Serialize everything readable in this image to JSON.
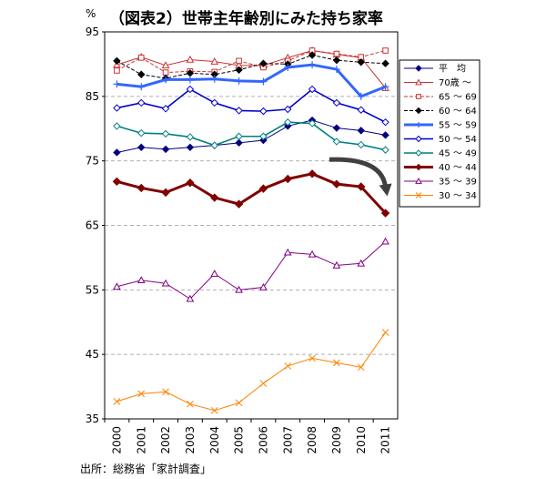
{
  "title": "（図表2）世帯主年齢別にみた持ち家率",
  "y_unit": "%",
  "source": "出所：総務省「家計調査」",
  "chart_data": {
    "type": "line",
    "title": "（図表2）世帯主年齢別にみた持ち家率",
    "xlabel": "",
    "ylabel": "%",
    "categories": [
      "2000",
      "2001",
      "2002",
      "2003",
      "2004",
      "2005",
      "2006",
      "2007",
      "2008",
      "2009",
      "2010",
      "2011"
    ],
    "ylim": [
      35,
      95
    ],
    "yticks": [
      35,
      45,
      55,
      65,
      75,
      85,
      95
    ],
    "grid": "horizontal dashed",
    "legend_position": "right",
    "annotation": "downward arrow between 2009 and 2011",
    "series": [
      {
        "name": "平　均",
        "color": "#000080",
        "style": "solid-thin",
        "marker": "diamond-filled",
        "values": [
          76.3,
          77.1,
          76.8,
          77.1,
          77.4,
          77.8,
          78.2,
          80.4,
          81.3,
          80.1,
          79.7,
          79.0
        ]
      },
      {
        "name": "70歳 ～",
        "color": "#cc3333",
        "style": "solid-thin",
        "marker": "triangle-open",
        "values": [
          89.9,
          91.1,
          89.8,
          90.7,
          90.4,
          89.8,
          89.8,
          91.0,
          92.1,
          91.5,
          91.0,
          86.3
        ]
      },
      {
        "name": "65 ～ 69",
        "color": "#cc3333",
        "style": "dashed",
        "marker": "square-open",
        "values": [
          89.0,
          91.0,
          88.7,
          88.9,
          88.8,
          90.5,
          89.5,
          90.5,
          92.1,
          91.6,
          91.1,
          92.1
        ]
      },
      {
        "name": "60 ～ 64",
        "color": "#000000",
        "style": "dashed",
        "marker": "diamond-filled",
        "values": [
          90.5,
          88.4,
          87.8,
          88.6,
          88.4,
          89.1,
          90.1,
          90.0,
          91.4,
          90.6,
          90.3,
          90.1
        ]
      },
      {
        "name": "55 ～ 59",
        "color": "#3366ff",
        "style": "solid-thick",
        "marker": "asterisk",
        "values": [
          86.9,
          86.5,
          87.6,
          87.6,
          87.7,
          87.4,
          87.3,
          89.5,
          89.9,
          89.2,
          85.0,
          86.5
        ]
      },
      {
        "name": "50 ～ 54",
        "color": "#0000cc",
        "style": "solid",
        "marker": "diamond-open",
        "values": [
          83.2,
          84.0,
          83.1,
          86.1,
          84.0,
          82.8,
          82.7,
          83.0,
          86.1,
          84.0,
          82.9,
          81.0
        ]
      },
      {
        "name": "45 ～ 49",
        "color": "#008080",
        "style": "solid-medium",
        "marker": "diamond-open",
        "values": [
          80.4,
          79.3,
          79.2,
          78.7,
          77.4,
          78.8,
          78.8,
          81.0,
          80.8,
          78.0,
          77.5,
          76.7
        ]
      },
      {
        "name": "40 ～ 44",
        "color": "#800000",
        "style": "solid-thick",
        "marker": "diamond-filled",
        "values": [
          71.8,
          70.8,
          70.1,
          71.6,
          69.3,
          68.3,
          70.7,
          72.2,
          73.0,
          71.4,
          71.0,
          66.9
        ]
      },
      {
        "name": "35 ～ 39",
        "color": "#800080",
        "style": "solid-thin",
        "marker": "triangle-open",
        "values": [
          55.5,
          56.5,
          56.0,
          53.6,
          57.5,
          55.0,
          55.4,
          60.8,
          60.5,
          58.8,
          59.1,
          62.5
        ]
      },
      {
        "name": "30 ～ 34",
        "color": "#ff8000",
        "style": "solid-thin",
        "marker": "x",
        "values": [
          37.7,
          38.9,
          39.2,
          37.3,
          36.3,
          37.5,
          40.5,
          43.2,
          44.4,
          43.7,
          43.0,
          48.4
        ]
      }
    ]
  }
}
